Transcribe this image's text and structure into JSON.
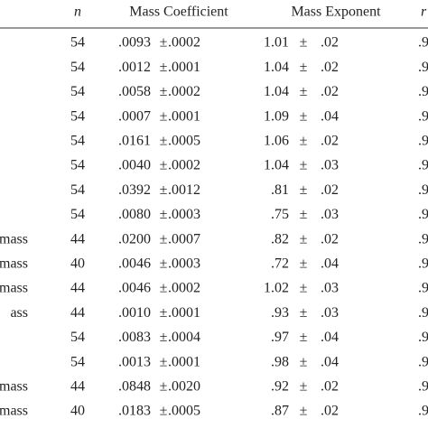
{
  "table": {
    "header": [
      "n",
      "Mass Coefficient",
      "Mass Exponent",
      "r"
    ],
    "rows": [
      [
        null,
        "54",
        ".0093",
        "±",
        ".0002",
        "1.01",
        "±",
        ".02",
        ".9"
      ],
      [
        null,
        "54",
        ".0012",
        "±",
        ".0001",
        "1.04",
        "±",
        ".02",
        ".9"
      ],
      [
        null,
        "54",
        ".0058",
        "±",
        ".0002",
        "1.04",
        "±",
        ".02",
        ".9"
      ],
      [
        null,
        "54",
        ".0007",
        "±",
        ".0001",
        "1.09",
        "±",
        ".04",
        ".9"
      ],
      [
        null,
        "54",
        ".0161",
        "±",
        ".0005",
        "1.06",
        "±",
        ".02",
        ".9"
      ],
      [
        null,
        "54",
        ".0040",
        "±",
        ".0002",
        "1.04",
        "±",
        ".03",
        ".9"
      ],
      [
        null,
        "54",
        ".0392",
        "±",
        ".0012",
        ".81",
        "±",
        ".02",
        ".9"
      ],
      [
        null,
        "54",
        ".0080",
        "±",
        ".0003",
        ".75",
        "±",
        ".03",
        ".9"
      ],
      [
        "mass",
        "44",
        ".0200",
        "±",
        ".0007",
        ".82",
        "±",
        ".02",
        ".9"
      ],
      [
        "mass",
        "40",
        ".0046",
        "±",
        ".0003",
        ".72",
        "±",
        ".04",
        ".9"
      ],
      [
        "mass",
        "44",
        ".0046",
        "±",
        ".0002",
        "1.02",
        "±",
        ".03",
        ".9"
      ],
      [
        "ass",
        "44",
        ".0010",
        "±",
        ".0001",
        ".93",
        "±",
        ".03",
        ".9"
      ],
      [
        null,
        "54",
        ".0083",
        "±",
        ".0004",
        ".97",
        "±",
        ".04",
        ".9"
      ],
      [
        null,
        "54",
        ".0013",
        "±",
        ".0001",
        ".98",
        "±",
        ".04",
        ".9"
      ],
      [
        "mass",
        "44",
        ".0848",
        "±",
        ".0020",
        ".92",
        "±",
        ".02",
        ".9"
      ],
      [
        "mass",
        "40",
        ".0183",
        "±",
        ".0005",
        ".87",
        "±",
        ".02",
        ".9"
      ]
    ]
  }
}
